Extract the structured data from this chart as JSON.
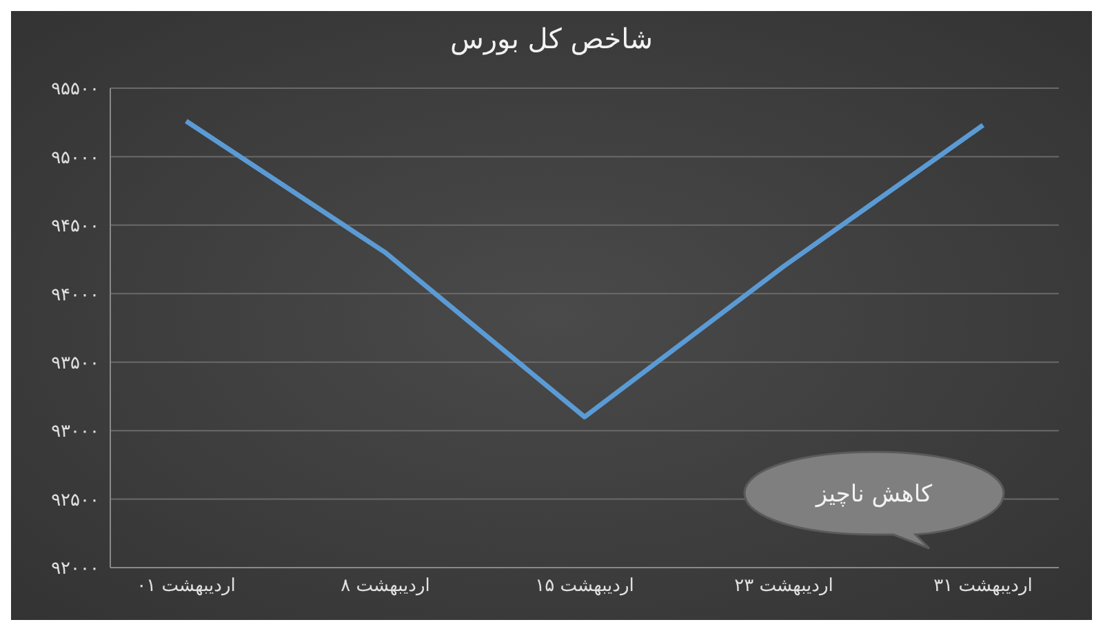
{
  "chart_data": {
    "type": "line",
    "title": "شاخص کل بورس",
    "categories": [
      "۰۱ اردیبهشت",
      "۸ اردیبهشت",
      "۱۵ اردیبهشت",
      "۲۳ اردیبهشت",
      "۳۱ اردیبهشت"
    ],
    "series": [
      {
        "color": "#5b9bd5",
        "values": [
          95260,
          94300,
          93100,
          94200,
          95230
        ]
      }
    ],
    "ylim": [
      92000,
      95500
    ],
    "yticks": [
      {
        "value": 92000,
        "label": "۹۲۰۰۰"
      },
      {
        "value": 92500,
        "label": "۹۲۵۰۰"
      },
      {
        "value": 93000,
        "label": "۹۳۰۰۰"
      },
      {
        "value": 93500,
        "label": "۹۳۵۰۰"
      },
      {
        "value": 94000,
        "label": "۹۴۰۰۰"
      },
      {
        "value": 94500,
        "label": "۹۴۵۰۰"
      },
      {
        "value": 95000,
        "label": "۹۵۰۰۰"
      },
      {
        "value": 95500,
        "label": "۹۵۵۰۰"
      }
    ],
    "grid": "y",
    "legend": false,
    "marker": "none",
    "line_style": "solid",
    "annotations": [
      "کاهش ناچیز"
    ]
  }
}
